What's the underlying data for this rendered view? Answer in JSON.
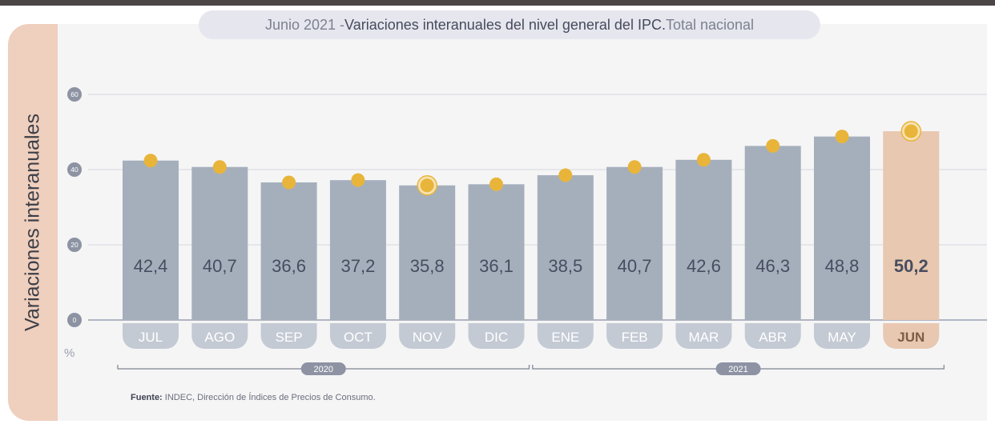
{
  "title": {
    "prefix": "Junio 2021 - ",
    "main": "Variaciones interanuales del nivel general del IPC.",
    "suffix": " Total nacional"
  },
  "side_label": "Variaciones interanuales",
  "source": {
    "label": "Fuente:",
    "text": " INDEC, Dirección de Índices de Precios de Consumo."
  },
  "colors": {
    "bar": "#a5afbc",
    "bar_highlight": "#e8c8b0",
    "dot": "#e8b53a",
    "month_pill": "#c4cad4",
    "month_pill_highlight": "#e8c8b0",
    "axis_circle": "#8d93a3",
    "grid": "#dcdde4"
  },
  "chart_data": {
    "type": "bar",
    "ylabel": "%",
    "ylim": [
      0,
      60
    ],
    "yticks": [
      "0",
      "20",
      "40",
      "60"
    ],
    "grid": true,
    "categories": [
      "JUL",
      "AGO",
      "SEP",
      "OCT",
      "NOV",
      "DIC",
      "ENE",
      "FEB",
      "MAR",
      "ABR",
      "MAY",
      "JUN"
    ],
    "value_labels": [
      "42,4",
      "40,7",
      "36,6",
      "37,2",
      "35,8",
      "36,1",
      "38,5",
      "40,7",
      "42,6",
      "46,3",
      "48,8",
      "50,2"
    ],
    "values": [
      42.4,
      40.7,
      36.6,
      37.2,
      35.8,
      36.1,
      38.5,
      40.7,
      42.6,
      46.3,
      48.8,
      50.2
    ],
    "highlight_index": 11,
    "ring_markers": [
      "NOV",
      "JUN"
    ],
    "year_groups": [
      {
        "label": "2020",
        "from": "JUL",
        "to": "DIC"
      },
      {
        "label": "2021",
        "from": "ENE",
        "to": "JUN"
      }
    ]
  }
}
